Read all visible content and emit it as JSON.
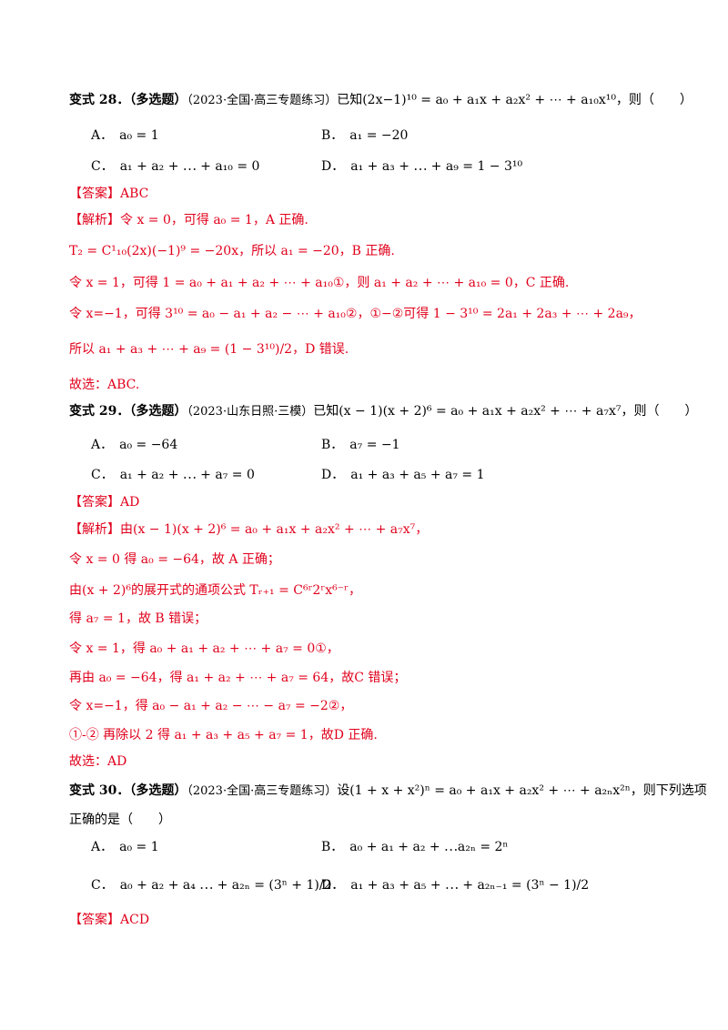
{
  "q28": {
    "header": "变式 28．（多选题）",
    "source": "（2023·全国·高三专题练习）",
    "stem": "已知(2x−1)¹⁰ = a₀ + a₁x + a₂x² + ⋯ + a₁₀x¹⁰，则（　　）",
    "options": {
      "A": "A．　a₀ = 1",
      "B": "B．　a₁ = −20",
      "C": "C．　a₁ + a₂ + ⋯ + a₁₀ = 0",
      "D": "D．　a₁ + a₃ + ⋯ + a₉ = 1 − 3¹⁰"
    },
    "answer": "【答案】ABC",
    "solution": [
      "【解析】令 x = 0，可得 a₀ = 1，A 正确.",
      "T₂ = C¹₁₀(2x)(−1)⁹ = −20x，所以 a₁ = −20，B 正确.",
      "令 x = 1，可得 1 = a₀ + a₁ + a₂ + ⋯ + a₁₀①，则 a₁ + a₂ + ⋯ + a₁₀ = 0，C 正确.",
      "令 x=−1，可得 3¹⁰ = a₀ − a₁ + a₂ − ⋯ + a₁₀②，①−②可得 1 − 3¹⁰ = 2a₁ + 2a₃ + ⋯ + 2a₉，",
      "所以 a₁ + a₃ + ⋯ + a₉ = (1 − 3¹⁰)/2，D 错误.",
      "故选：ABC."
    ]
  },
  "q29": {
    "header": "变式 29．（多选题）",
    "source": "（2023·山东日照·三模）",
    "stem": "已知(x − 1)(x + 2)⁶ = a₀ + a₁x + a₂x² + ⋯ + a₇x⁷，则（　　）",
    "options": {
      "A": "A．　a₀ = −64",
      "B": "B．　a₇ = −1",
      "C": "C．　a₁ + a₂ + ⋯ + a₇ = 0",
      "D": "D．　a₁ + a₃ + a₅ + a₇ = 1"
    },
    "answer": "【答案】AD",
    "solution": [
      "【解析】由(x − 1)(x + 2)⁶ = a₀ + a₁x + a₂x² + ⋯ + a₇x⁷，",
      "令 x = 0 得 a₀ = −64，故 A 正确；",
      "由(x + 2)⁶的展开式的通项公式 Tᵣ₊₁ = C⁶ʳ2ʳx⁶⁻ʳ，",
      "得 a₇ = 1，故 B 错误；",
      "令 x = 1，得 a₀ + a₁ + a₂ + ⋯ + a₇ = 0①，",
      "再由 a₀ = −64，得 a₁ + a₂ + ⋯ + a₇ = 64，故C 错误；",
      "令 x=−1，得 a₀ − a₁ + a₂ − ⋯ − a₇ = −2②，",
      "①-② 再除以 2 得 a₁ + a₃ + a₅ + a₇ = 1，故D 正确.",
      "故选：AD"
    ]
  },
  "q30": {
    "header": "变式 30．（多选题）",
    "source": "（2023·全国·高三专题练习）",
    "stem": "设(1 + x + x²)ⁿ = a₀ + a₁x + a₂x² + ⋯ + a₂ₙx²ⁿ，则下列选项",
    "stem2": "正确的是（　　）",
    "options": {
      "A": "A．　a₀ = 1",
      "B": "B．　a₀ + a₁ + a₂ + ⋯a₂ₙ = 2ⁿ",
      "C": "C．　a₀ + a₂ + a₄ ⋯ + a₂ₙ = (3ⁿ + 1)/2",
      "D": "D．　a₁ + a₃ + a₅ + ⋯ + a₂ₙ₋₁ = (3ⁿ − 1)/2"
    },
    "answer": "【答案】ACD"
  },
  "colors": {
    "answer_red": "#e0001b",
    "text": "#000000"
  }
}
